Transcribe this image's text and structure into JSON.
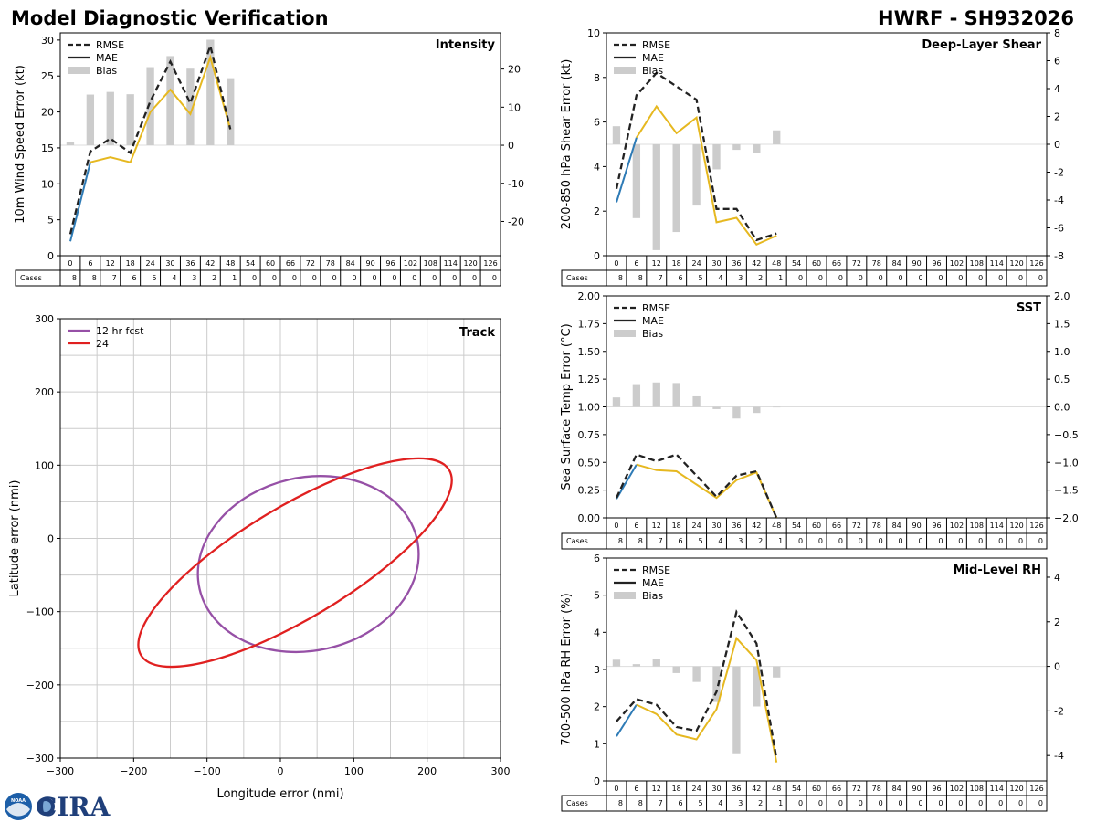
{
  "header": {
    "title_left": "Model Diagnostic Verification",
    "title_right": "HWRF - SH932026"
  },
  "colors": {
    "rmse": "#222222",
    "mae_early": "#2e7bb6",
    "mae": "#e6b820",
    "bias": "#cccccc",
    "grid": "#cccccc",
    "track_12": "#9650a6",
    "track_24": "#e02020"
  },
  "legend_labels": {
    "rmse": "RMSE",
    "mae": "MAE",
    "bias": "Bias"
  },
  "table": {
    "cases_label": "Cases",
    "lead_times": [
      0,
      6,
      12,
      18,
      24,
      30,
      36,
      42,
      48,
      54,
      60,
      66,
      72,
      78,
      84,
      90,
      96,
      102,
      108,
      114,
      120,
      126
    ],
    "cases": [
      8,
      8,
      7,
      6,
      5,
      4,
      3,
      2,
      1,
      0,
      0,
      0,
      0,
      0,
      0,
      0,
      0,
      0,
      0,
      0,
      0,
      0
    ]
  },
  "logo": {
    "text": "CIRA",
    "seal_text": "NOAA"
  },
  "chart_data": [
    {
      "id": "intensity",
      "type": "line",
      "title": "Intensity",
      "ylabel": "10m Wind Speed Error (kt)",
      "ylim": [
        0,
        31
      ],
      "yticks": [
        0,
        5,
        10,
        15,
        20,
        25,
        30
      ],
      "y2lim": [
        -29,
        29.5
      ],
      "y2ticks": [
        20,
        10,
        0,
        -10,
        -20
      ],
      "rmse": [
        3,
        14.5,
        16.3,
        14.3,
        21.5,
        27,
        21.2,
        29.2,
        17.6
      ],
      "mae": [
        2,
        13,
        13.7,
        13,
        20,
        23.1,
        19.7,
        27.6,
        17.6
      ],
      "bias": [
        0.8,
        13.3,
        14,
        13.4,
        20.5,
        23.4,
        20.1,
        27.7,
        17.6
      ]
    },
    {
      "id": "shear",
      "type": "line",
      "title": "Deep-Layer Shear",
      "ylabel": "200-850 hPa Shear Error (kt)",
      "ylim": [
        0,
        10
      ],
      "yticks": [
        0,
        2,
        4,
        6,
        8,
        10
      ],
      "y2lim": [
        -8,
        8
      ],
      "y2ticks": [
        8,
        6,
        4,
        2,
        0,
        -2,
        -4,
        -6,
        -8
      ],
      "rmse": [
        3,
        7.2,
        8.2,
        7.6,
        7,
        2.1,
        2.1,
        0.7,
        1.0
      ],
      "mae": [
        2.4,
        5.3,
        6.7,
        5.5,
        6.2,
        1.5,
        1.7,
        0.5,
        0.9
      ],
      "bias": [
        1.3,
        -5.3,
        -7.6,
        -6.3,
        -4.4,
        -1.8,
        -0.4,
        -0.6,
        1.0
      ]
    },
    {
      "id": "sst",
      "type": "line",
      "title": "SST",
      "ylabel": "Sea Surface Temp Error (°C)",
      "ylim": [
        0,
        2
      ],
      "yticks": [
        "0.00",
        "0.25",
        "0.50",
        "0.75",
        "1.00",
        "1.25",
        "1.50",
        "1.75",
        "2.00"
      ],
      "y2lim": [
        -2,
        2
      ],
      "y2ticks": [
        "2.0",
        "1.5",
        "1.0",
        "0.5",
        "0.0",
        "−0.5",
        "−1.0",
        "−1.5",
        "−2.0"
      ],
      "rmse": [
        0.18,
        0.57,
        0.51,
        0.57,
        0.38,
        0.19,
        0.38,
        0.42,
        0.0
      ],
      "mae": [
        0.17,
        0.48,
        0.43,
        0.42,
        0.3,
        0.18,
        0.34,
        0.41,
        0.0
      ],
      "bias": [
        0.17,
        0.41,
        0.44,
        0.43,
        0.19,
        -0.04,
        -0.21,
        -0.11,
        -0.01
      ]
    },
    {
      "id": "rh",
      "type": "line",
      "title": "Mid-Level RH",
      "ylabel": "700-500 hPa RH Error (%)",
      "ylim": [
        0,
        6
      ],
      "yticks": [
        0,
        1,
        2,
        3,
        4,
        5,
        6
      ],
      "y2lim": [
        -5.14,
        4.86
      ],
      "y2ticks": [
        4,
        2,
        0,
        -2,
        -4
      ],
      "rmse": [
        1.6,
        2.2,
        2.05,
        1.45,
        1.35,
        2.4,
        4.55,
        3.7,
        0.6
      ],
      "mae": [
        1.2,
        2.05,
        1.8,
        1.25,
        1.12,
        1.93,
        3.84,
        3.25,
        0.5
      ],
      "bias": [
        0.3,
        0.1,
        0.35,
        -0.3,
        -0.7,
        -1.6,
        -3.9,
        -1.8,
        -0.5
      ]
    },
    {
      "id": "track",
      "type": "scatter",
      "title": "Track",
      "xlabel": "Longitude error (nmi)",
      "ylabel": "Latitude error (nmi)",
      "xlim": [
        -300,
        300
      ],
      "ylim": [
        -300,
        300
      ],
      "xticks": [
        "−300",
        "−200",
        "−100",
        "0",
        "100",
        "200",
        "300"
      ],
      "yticks": [
        "300",
        "200",
        "100",
        "0",
        "−100",
        "−200",
        "−300"
      ],
      "legend": [
        "12 hr fcst",
        "24"
      ],
      "ellipses": [
        {
          "name": "12 hr fcst",
          "cx": 38,
          "cy": -35,
          "rx": 152,
          "ry": 118,
          "rotation": -13
        },
        {
          "name": "24",
          "cx": 20,
          "cy": -33,
          "rx": 245,
          "ry": 76,
          "rotation": -31
        }
      ]
    }
  ]
}
